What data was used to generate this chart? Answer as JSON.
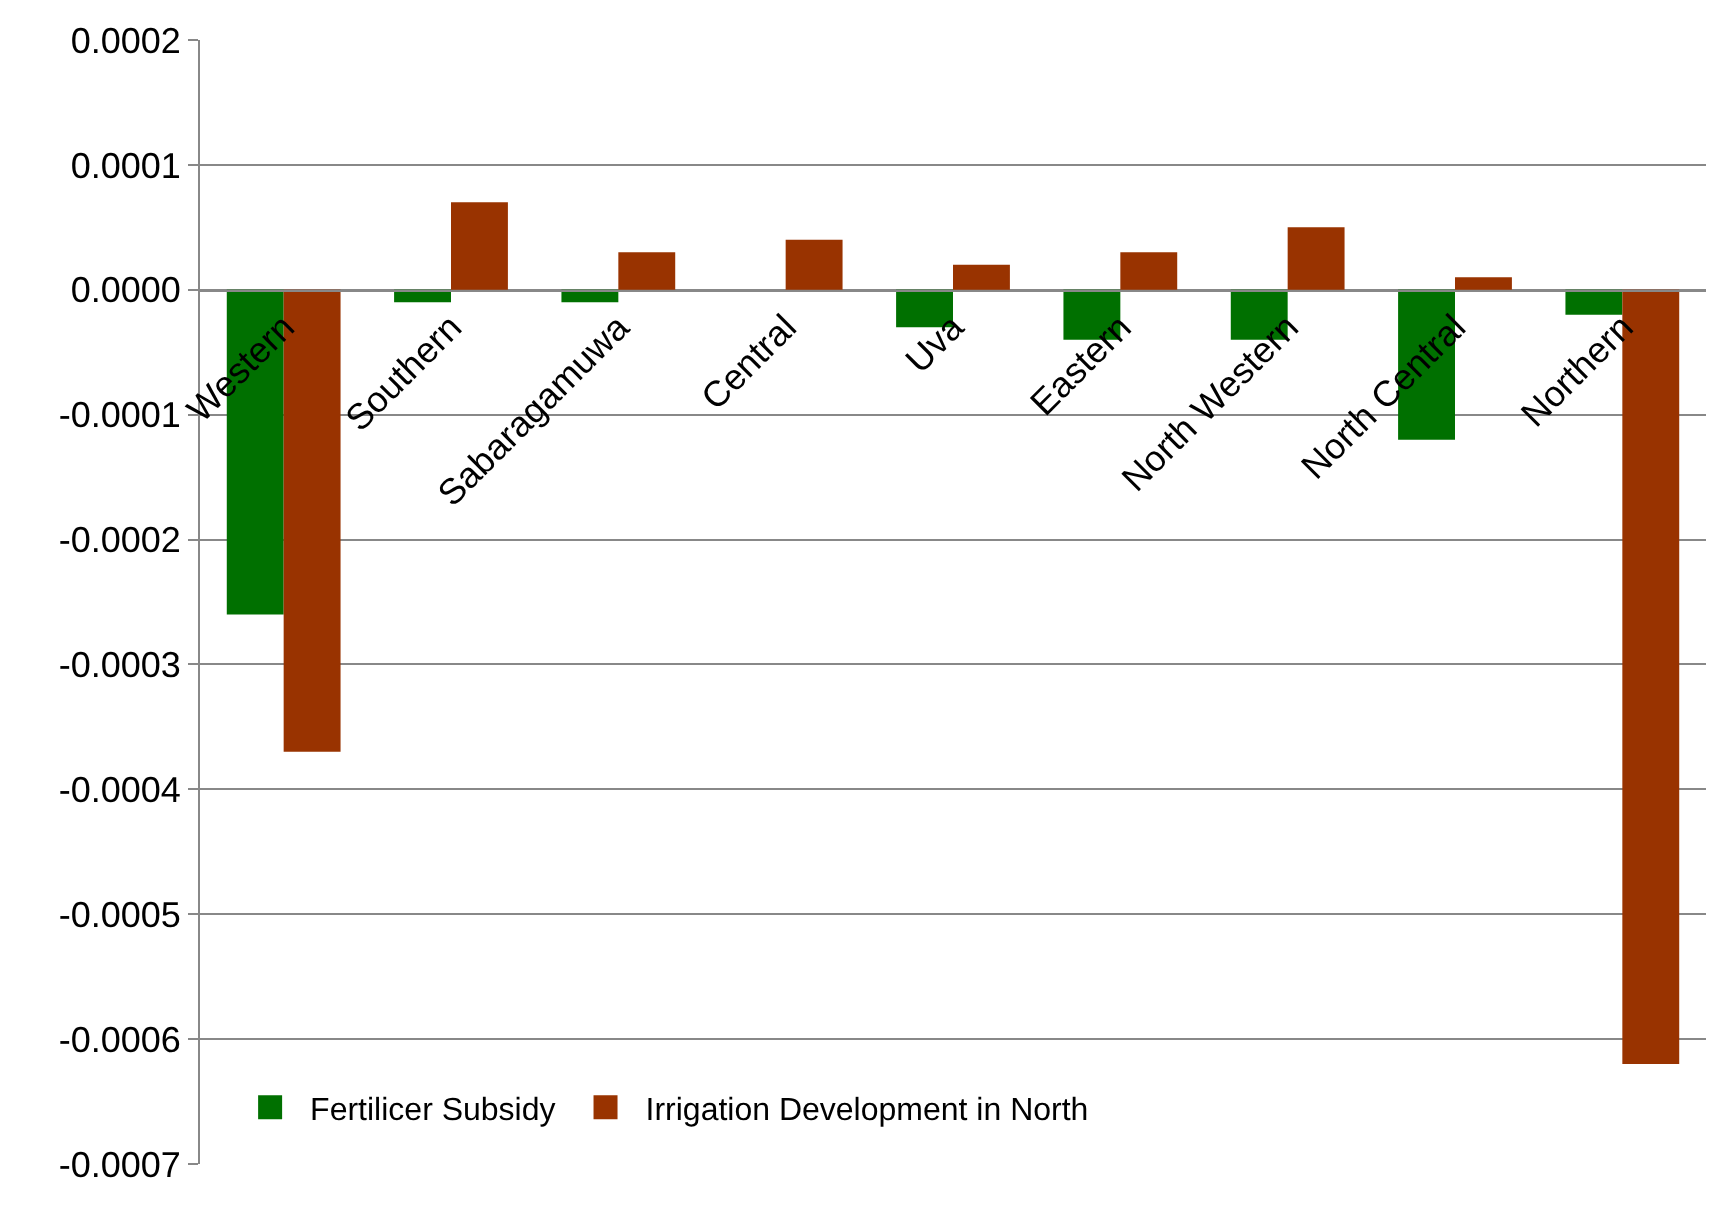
{
  "chart_data": {
    "type": "bar",
    "categories": [
      "Western",
      "Southern",
      "Sabaragamuwa",
      "Central",
      "Uva",
      "Eastern",
      "North Western",
      "North Central",
      "Northern"
    ],
    "series": [
      {
        "name": "Fertilicer Subsidy",
        "color": "#007000",
        "values": [
          -0.00026,
          -1e-05,
          -1e-05,
          0.0,
          -3e-05,
          -4e-05,
          -4e-05,
          -0.00012,
          -2e-05
        ]
      },
      {
        "name": "Irrigation Development in North",
        "color": "#993300",
        "values": [
          -0.00037,
          7e-05,
          3e-05,
          4e-05,
          2e-05,
          3e-05,
          5e-05,
          1e-05,
          -0.00062
        ]
      }
    ],
    "ylim": [
      -0.0007,
      0.0002
    ],
    "yticks": [
      {
        "value": 0.0002,
        "label": "0.0002"
      },
      {
        "value": 0.0001,
        "label": "0.0001"
      },
      {
        "value": 0,
        "label": "0.0000"
      },
      {
        "value": -0.0001,
        "label": "-0.0001"
      },
      {
        "value": -0.0002,
        "label": "-0.0002"
      },
      {
        "value": -0.0003,
        "label": "-0.0003"
      },
      {
        "value": -0.0004,
        "label": "-0.0004"
      },
      {
        "value": -0.0005,
        "label": "-0.0005"
      },
      {
        "value": -0.0006,
        "label": "-0.0006"
      },
      {
        "value": -0.0007,
        "label": "-0.0007"
      }
    ],
    "grid": "y",
    "legend": "bottom left"
  }
}
